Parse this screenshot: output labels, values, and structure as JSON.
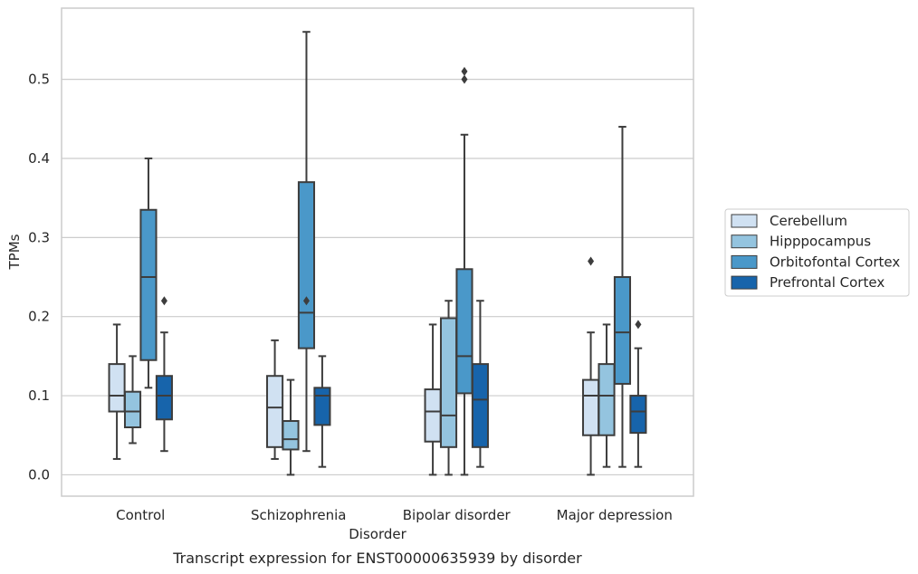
{
  "chart_data": {
    "type": "box",
    "caption": "Transcript expression for ENST00000635939 by disorder",
    "xlabel": "Disorder",
    "ylabel": "TPMs",
    "ylim": [
      -0.027,
      0.59
    ],
    "yticks": [
      0.0,
      0.1,
      0.2,
      0.3,
      0.4,
      0.5
    ],
    "ytick_labels": [
      "0.0",
      "0.1",
      "0.2",
      "0.3",
      "0.4",
      "0.5"
    ],
    "grid": "horizontal",
    "legend_position": "right",
    "categories": [
      "Control",
      "Schizophrenia",
      "Bipolar disorder",
      "Major depression"
    ],
    "series": [
      {
        "name": "Cerebellum",
        "color": "#d0e1f2",
        "boxes": [
          {
            "whislo": 0.02,
            "q1": 0.08,
            "med": 0.1,
            "q3": 0.14,
            "whishi": 0.19,
            "fliers": []
          },
          {
            "whislo": 0.02,
            "q1": 0.035,
            "med": 0.085,
            "q3": 0.125,
            "whishi": 0.17,
            "fliers": []
          },
          {
            "whislo": 0.0,
            "q1": 0.042,
            "med": 0.08,
            "q3": 0.108,
            "whishi": 0.19,
            "fliers": []
          },
          {
            "whislo": 0.0,
            "q1": 0.05,
            "med": 0.1,
            "q3": 0.12,
            "whishi": 0.18,
            "fliers": [
              0.27
            ]
          }
        ]
      },
      {
        "name": "Hipppocampus",
        "color": "#94c4df",
        "boxes": [
          {
            "whislo": 0.04,
            "q1": 0.06,
            "med": 0.08,
            "q3": 0.105,
            "whishi": 0.15,
            "fliers": []
          },
          {
            "whislo": 0.0,
            "q1": 0.032,
            "med": 0.045,
            "q3": 0.068,
            "whishi": 0.12,
            "fliers": []
          },
          {
            "whislo": 0.0,
            "q1": 0.035,
            "med": 0.075,
            "q3": 0.198,
            "whishi": 0.22,
            "fliers": []
          },
          {
            "whislo": 0.01,
            "q1": 0.05,
            "med": 0.1,
            "q3": 0.14,
            "whishi": 0.19,
            "fliers": []
          }
        ]
      },
      {
        "name": "Orbitofontal Cortex",
        "color": "#4a98c9",
        "boxes": [
          {
            "whislo": 0.11,
            "q1": 0.145,
            "med": 0.25,
            "q3": 0.335,
            "whishi": 0.4,
            "fliers": []
          },
          {
            "whislo": 0.03,
            "q1": 0.16,
            "med": 0.205,
            "q3": 0.37,
            "whishi": 0.56,
            "fliers": [
              0.22
            ]
          },
          {
            "whislo": 0.0,
            "q1": 0.103,
            "med": 0.15,
            "q3": 0.26,
            "whishi": 0.43,
            "fliers": [
              0.5,
              0.51
            ]
          },
          {
            "whislo": 0.01,
            "q1": 0.115,
            "med": 0.18,
            "q3": 0.25,
            "whishi": 0.44,
            "fliers": []
          }
        ]
      },
      {
        "name": "Prefrontal Cortex",
        "color": "#1764ab",
        "boxes": [
          {
            "whislo": 0.03,
            "q1": 0.07,
            "med": 0.1,
            "q3": 0.125,
            "whishi": 0.18,
            "fliers": [
              0.22
            ]
          },
          {
            "whislo": 0.01,
            "q1": 0.063,
            "med": 0.1,
            "q3": 0.11,
            "whishi": 0.15,
            "fliers": []
          },
          {
            "whislo": 0.01,
            "q1": 0.035,
            "med": 0.095,
            "q3": 0.14,
            "whishi": 0.22,
            "fliers": []
          },
          {
            "whislo": 0.01,
            "q1": 0.053,
            "med": 0.08,
            "q3": 0.1,
            "whishi": 0.16,
            "fliers": [
              0.19
            ]
          }
        ]
      }
    ]
  }
}
